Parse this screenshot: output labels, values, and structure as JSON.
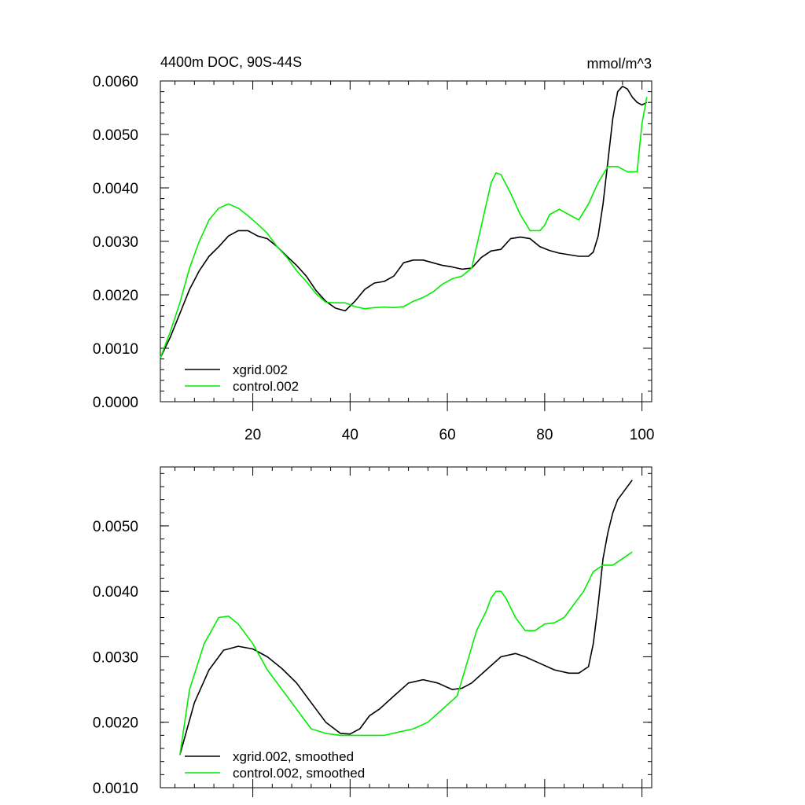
{
  "colors": {
    "series_a": "#000000",
    "series_b": "#00ee00",
    "axis": "#000000"
  },
  "chart_data": [
    {
      "type": "line",
      "title_left": "4400m DOC, 90S-44S",
      "title_right": "mmol/m^3",
      "xlim": [
        1,
        102
      ],
      "ylim": [
        0.0,
        0.006
      ],
      "y_ticks": [
        0.0,
        0.001,
        0.002,
        0.003,
        0.004,
        0.005,
        0.006
      ],
      "y_tick_labels": [
        "0.0000",
        "0.0010",
        "0.0020",
        "0.0030",
        "0.0040",
        "0.0050",
        "0.0060"
      ],
      "x_ticks": [
        20,
        40,
        60,
        80,
        100
      ],
      "x_tick_labels": [
        "20",
        "40",
        "60",
        "80",
        "100"
      ],
      "legend_position": "bottom-left",
      "series": [
        {
          "name": "xgrid.002",
          "color": "#000000",
          "x": [
            1,
            3,
            5,
            7,
            9,
            11,
            13,
            15,
            17,
            19,
            21,
            23,
            25,
            27,
            29,
            31,
            33,
            35,
            37,
            39,
            41,
            43,
            45,
            47,
            49,
            51,
            53,
            55,
            57,
            59,
            61,
            63,
            65,
            67,
            69,
            71,
            73,
            75,
            77,
            79,
            81,
            83,
            85,
            87,
            89,
            90,
            91,
            92,
            93,
            94,
            95,
            96,
            97,
            98,
            99,
            100,
            101
          ],
          "y": [
            0.00082,
            0.0012,
            0.00165,
            0.0021,
            0.00245,
            0.00272,
            0.0029,
            0.0031,
            0.0032,
            0.0032,
            0.0031,
            0.00305,
            0.0029,
            0.00272,
            0.00255,
            0.00235,
            0.00208,
            0.00188,
            0.00175,
            0.0017,
            0.00188,
            0.0021,
            0.00222,
            0.00225,
            0.00235,
            0.0026,
            0.00265,
            0.00265,
            0.0026,
            0.00255,
            0.00252,
            0.00248,
            0.0025,
            0.0027,
            0.00282,
            0.00285,
            0.00305,
            0.00308,
            0.00305,
            0.0029,
            0.00283,
            0.00278,
            0.00275,
            0.00272,
            0.00272,
            0.0028,
            0.0031,
            0.0037,
            0.0045,
            0.0053,
            0.0058,
            0.0059,
            0.00585,
            0.0057,
            0.0056,
            0.00555,
            0.0056
          ]
        },
        {
          "name": "control.002",
          "color": "#00ee00",
          "x": [
            1,
            3,
            5,
            7,
            9,
            11,
            13,
            15,
            17,
            19,
            21,
            23,
            25,
            27,
            29,
            31,
            33,
            35,
            37,
            39,
            41,
            43,
            45,
            47,
            49,
            51,
            53,
            55,
            57,
            59,
            61,
            63,
            65,
            66,
            67,
            69,
            70,
            71,
            73,
            75,
            77,
            79,
            80,
            81,
            83,
            85,
            87,
            89,
            91,
            93,
            95,
            97,
            99,
            100,
            101
          ],
          "y": [
            0.00082,
            0.0013,
            0.00185,
            0.0025,
            0.003,
            0.0034,
            0.00362,
            0.0037,
            0.00362,
            0.00348,
            0.00332,
            0.00315,
            0.0029,
            0.0027,
            0.00245,
            0.00225,
            0.00202,
            0.00186,
            0.00185,
            0.00185,
            0.00178,
            0.00174,
            0.00176,
            0.00177,
            0.00176,
            0.00178,
            0.00188,
            0.00195,
            0.00205,
            0.0022,
            0.0023,
            0.00235,
            0.0025,
            0.0029,
            0.0033,
            0.0041,
            0.00428,
            0.00425,
            0.0039,
            0.0035,
            0.0032,
            0.0032,
            0.0033,
            0.0035,
            0.0036,
            0.0035,
            0.0034,
            0.0037,
            0.0041,
            0.0044,
            0.0044,
            0.0043,
            0.0043,
            0.0052,
            0.0057
          ]
        }
      ]
    },
    {
      "type": "line",
      "xlim": [
        1,
        102
      ],
      "ylim": [
        0.001,
        0.0059
      ],
      "y_ticks": [
        0.001,
        0.002,
        0.003,
        0.004,
        0.005
      ],
      "y_tick_labels": [
        "0.0010",
        "0.0020",
        "0.0030",
        "0.0040",
        "0.0050"
      ],
      "x_ticks": [
        20,
        40,
        60,
        80,
        100
      ],
      "legend_position": "bottom-left",
      "series": [
        {
          "name": "xgrid.002, smoothed",
          "color": "#000000",
          "x": [
            5,
            8,
            11,
            14,
            17,
            20,
            23,
            26,
            29,
            32,
            35,
            38,
            40,
            42,
            44,
            46,
            49,
            52,
            55,
            58,
            61,
            63,
            65,
            68,
            71,
            74,
            76,
            79,
            82,
            85,
            87,
            89,
            90,
            91,
            92,
            93,
            94,
            95,
            96,
            98
          ],
          "y": [
            0.0015,
            0.0023,
            0.0028,
            0.0031,
            0.00316,
            0.00312,
            0.003,
            0.00282,
            0.0026,
            0.0023,
            0.002,
            0.00183,
            0.00182,
            0.0019,
            0.0021,
            0.0022,
            0.0024,
            0.0026,
            0.00265,
            0.0026,
            0.0025,
            0.00252,
            0.0026,
            0.0028,
            0.003,
            0.00305,
            0.003,
            0.0029,
            0.0028,
            0.00275,
            0.00275,
            0.00285,
            0.0032,
            0.0038,
            0.0045,
            0.0049,
            0.0052,
            0.0054,
            0.0055,
            0.0057
          ]
        },
        {
          "name": "control.002, smoothed",
          "color": "#00ee00",
          "x": [
            5,
            7,
            10,
            13,
            15,
            17,
            20,
            23,
            26,
            29,
            32,
            35,
            38,
            41,
            44,
            47,
            50,
            53,
            56,
            59,
            62,
            64,
            66,
            68,
            69,
            70,
            71,
            72,
            74,
            76,
            78,
            80,
            82,
            84,
            86,
            88,
            90,
            92,
            94,
            96,
            98
          ],
          "y": [
            0.0015,
            0.0025,
            0.0032,
            0.0036,
            0.00362,
            0.0035,
            0.0032,
            0.0028,
            0.0025,
            0.0022,
            0.0019,
            0.00183,
            0.0018,
            0.0018,
            0.0018,
            0.0018,
            0.00185,
            0.0019,
            0.002,
            0.0022,
            0.0024,
            0.0029,
            0.0034,
            0.0037,
            0.0039,
            0.004,
            0.004,
            0.0039,
            0.0036,
            0.0034,
            0.0034,
            0.0035,
            0.00352,
            0.0036,
            0.0038,
            0.004,
            0.0043,
            0.0044,
            0.0044,
            0.0045,
            0.0046
          ]
        }
      ]
    }
  ]
}
